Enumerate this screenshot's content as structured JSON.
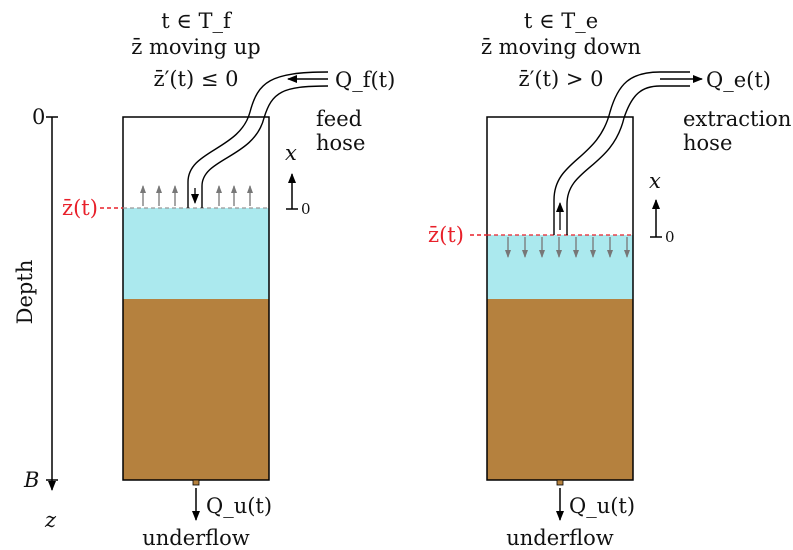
{
  "depth_axis": {
    "label": "Depth",
    "top_tick": "0",
    "bottom_tick": "B",
    "variable": "z"
  },
  "interface_label": "z̄(t)",
  "panels": [
    {
      "time_label": "t ∈ T_f",
      "motion_label": "z̄ moving up",
      "condition_label": "z̄′(t) ≤ 0",
      "hose_flow_label": "Q_f(t)",
      "hose_name_line1": "feed",
      "hose_name_line2": "hose",
      "underflow_flow_label": "Q_u(t)",
      "underflow_name": "underflow",
      "x_axis_label": "x",
      "x_axis_origin": "0"
    },
    {
      "time_label": "t ∈ T_e",
      "motion_label": "z̄ moving down",
      "condition_label": "z̄′(t) > 0",
      "hose_flow_label": "Q_e(t)",
      "hose_name_line1": "extraction",
      "hose_name_line2": "hose",
      "underflow_flow_label": "Q_u(t)",
      "underflow_name": "underflow",
      "x_axis_label": "x",
      "x_axis_origin": "0"
    }
  ],
  "colors": {
    "water": "#ABE9EE",
    "sediment": "#B5813E",
    "interface": "#E8202A",
    "arrows": "#777777",
    "outline": "#000000"
  }
}
